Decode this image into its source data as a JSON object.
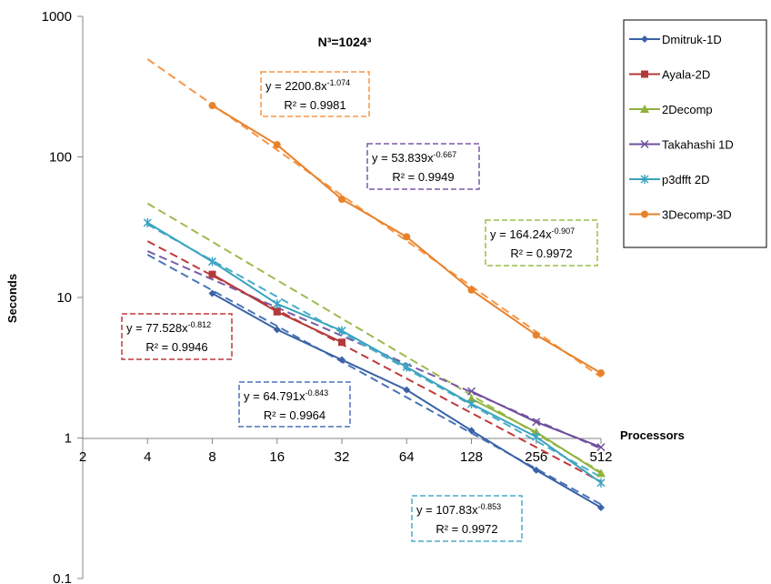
{
  "chart_data": {
    "type": "line",
    "title": "N³=1024³",
    "xlabel": "Processors",
    "ylabel": "Seconds",
    "x_scale": "log2",
    "y_scale": "log10",
    "xlim": [
      2,
      512
    ],
    "ylim": [
      0.1,
      1000
    ],
    "x_ticks": [
      "2",
      "4",
      "8",
      "16",
      "32",
      "64",
      "128",
      "256",
      "512"
    ],
    "y_ticks": [
      "0.1",
      "1",
      "10",
      "100",
      "1000"
    ],
    "legend_position": "right",
    "series": [
      {
        "name": "Dmitruk-1D",
        "color": "#3a62a6",
        "marker": "diamond",
        "x": [
          8,
          16,
          32,
          64,
          128,
          256,
          512
        ],
        "y": [
          10.7,
          5.9,
          3.6,
          2.2,
          1.13,
          0.59,
          0.32
        ],
        "trend": {
          "a": 64.791,
          "b": -0.843,
          "x_range": [
            4,
            512
          ],
          "color": "#4a74b8"
        }
      },
      {
        "name": "Ayala-2D",
        "color": "#b33a3a",
        "marker": "square",
        "x": [
          8,
          16,
          32
        ],
        "y": [
          14.6,
          7.9,
          4.8
        ],
        "trend": {
          "a": 77.528,
          "b": -0.812,
          "x_range": [
            4,
            512
          ],
          "color": "#c0393b"
        }
      },
      {
        "name": "2Decomp",
        "color": "#8fb23e",
        "marker": "triangle",
        "x": [
          128,
          256,
          512
        ],
        "y": [
          1.9,
          1.1,
          0.56
        ],
        "trend": {
          "a": 164.24,
          "b": -0.907,
          "x_range": [
            4,
            512
          ],
          "color": "#9cbb4f"
        }
      },
      {
        "name": "Takahashi 1D",
        "color": "#6f4f9c",
        "marker": "x",
        "x": [
          128,
          256,
          512
        ],
        "y": [
          2.15,
          1.3,
          0.86
        ],
        "trend": {
          "a": 53.839,
          "b": -0.667,
          "x_range": [
            4,
            512
          ],
          "color": "#7b5aa6"
        }
      },
      {
        "name": "p3dfft 2D",
        "color": "#3aa3c0",
        "marker": "star",
        "x": [
          4,
          8,
          16,
          32,
          64,
          128,
          256,
          512
        ],
        "y": [
          34,
          18,
          9,
          5.8,
          3.2,
          1.75,
          1.02,
          0.48
        ],
        "trend": {
          "a": 107.83,
          "b": -0.853,
          "x_range": [
            4,
            512
          ],
          "color": "#4bacc6"
        }
      },
      {
        "name": "3Decomp-3D",
        "color": "#e8822a",
        "marker": "circle",
        "x": [
          8,
          16,
          32,
          64,
          128,
          256,
          512
        ],
        "y": [
          232,
          122,
          50,
          27,
          11.3,
          5.4,
          2.9
        ],
        "trend": {
          "a": 2200.8,
          "b": -1.074,
          "x_range": [
            4,
            512
          ],
          "color": "#f79646"
        }
      }
    ],
    "annotations": [
      {
        "series": "3Decomp-3D",
        "eq_main": "y = 2200.8x",
        "eq_exp": "-1.074",
        "r2": "R² = 0.9981",
        "color": "#f79646"
      },
      {
        "series": "Takahashi 1D",
        "eq_main": "y = 53.839x",
        "eq_exp": "-0.667",
        "r2": "R² = 0.9949",
        "color": "#7b5aa6"
      },
      {
        "series": "2Decomp",
        "eq_main": "y = 164.24x",
        "eq_exp": "-0.907",
        "r2": "R² = 0.9972",
        "color": "#9cbb4f"
      },
      {
        "series": "Ayala-2D",
        "eq_main": "y = 77.528x",
        "eq_exp": "-0.812",
        "r2": "R² = 0.9946",
        "color": "#c0393b"
      },
      {
        "series": "Dmitruk-1D",
        "eq_main": "y = 64.791x",
        "eq_exp": "-0.843",
        "r2": "R² = 0.9964",
        "color": "#4a74b8"
      },
      {
        "series": "p3dfft 2D",
        "eq_main": "y = 107.83x",
        "eq_exp": "-0.853",
        "r2": "R² = 0.9972",
        "color": "#4bacc6"
      }
    ]
  }
}
